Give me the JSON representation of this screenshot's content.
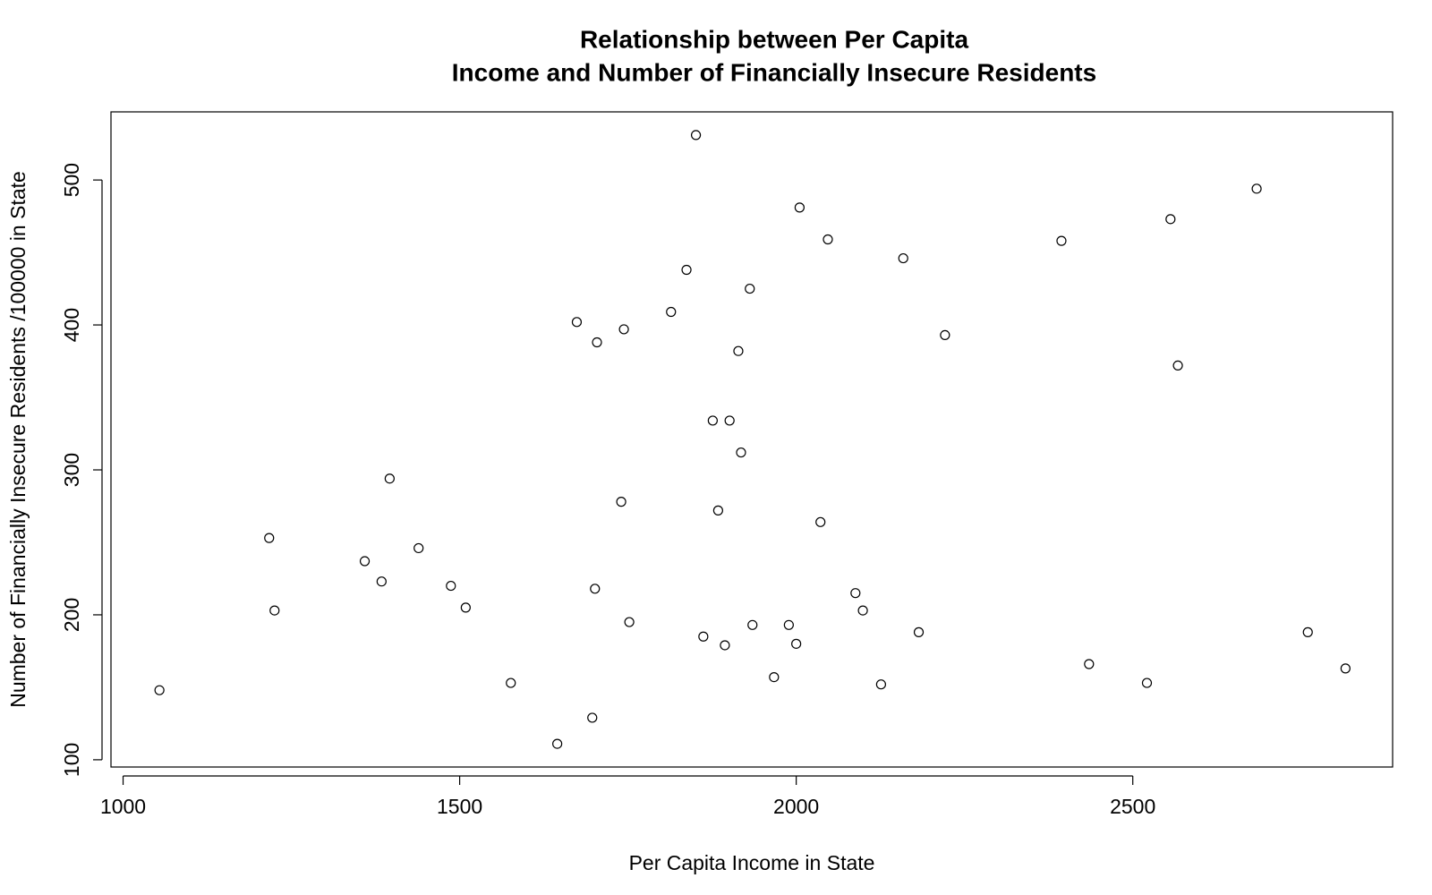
{
  "chart_data": {
    "type": "scatter",
    "title": "Relationship between Per Capita",
    "subtitle": "Income and Number of Financially Insecure Residents",
    "x_label": "Per Capita Income in State",
    "y_label": "Number of Financially Insecure Residents /100000 in State",
    "color": "#000000",
    "xlim": [
      982,
      2886
    ],
    "ylim": [
      95,
      547
    ],
    "xticks": [
      1000,
      1500,
      2000,
      2500
    ],
    "yticks": [
      100,
      200,
      300,
      400,
      500
    ],
    "x": [
      1054,
      1217,
      1225,
      1359,
      1384,
      1396,
      1439,
      1487,
      1509,
      1576,
      1645,
      1674,
      1697,
      1701,
      1704,
      1740,
      1744,
      1752,
      1814,
      1837,
      1851,
      1862,
      1876,
      1884,
      1894,
      1901,
      1914,
      1918,
      1931,
      1935,
      1967,
      1989,
      2000,
      2005,
      2036,
      2047,
      2088,
      2099,
      2126,
      2159,
      2182,
      2221,
      2394,
      2435,
      2521,
      2556,
      2567,
      2684,
      2760,
      2816
    ],
    "y": [
      148,
      253,
      203,
      237,
      223,
      294,
      246,
      220,
      205,
      153,
      111,
      402,
      129,
      218,
      388,
      278,
      397,
      195,
      409,
      438,
      531,
      185,
      334,
      272,
      179,
      334,
      382,
      312,
      425,
      193,
      157,
      193,
      180,
      481,
      264,
      459,
      215,
      203,
      152,
      446,
      188,
      393,
      458,
      166,
      153,
      473,
      372,
      494,
      188,
      163
    ]
  }
}
